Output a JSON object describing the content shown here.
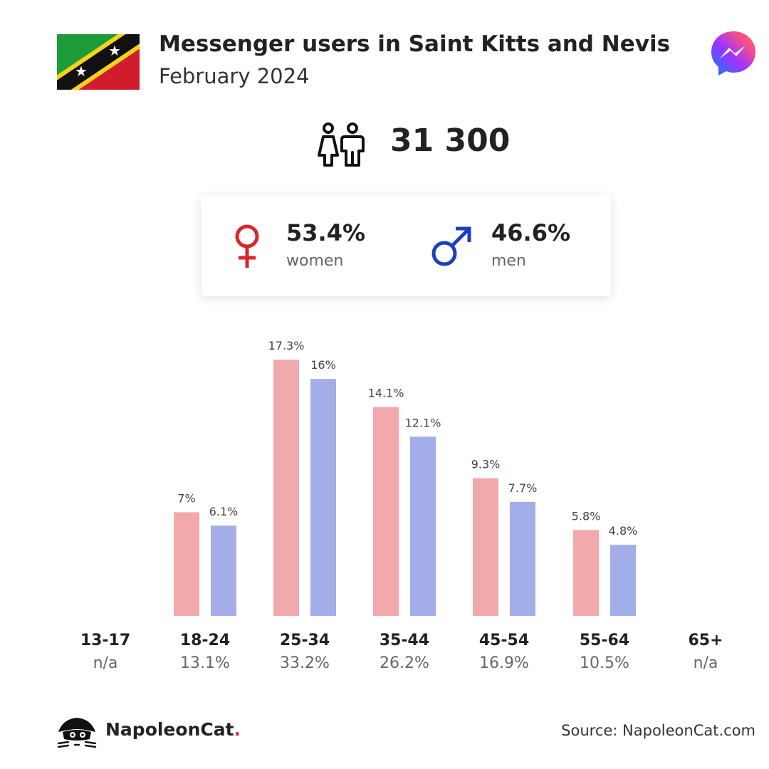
{
  "header": {
    "title": "Messenger users in Saint Kitts and Nevis",
    "subtitle": "February 2024"
  },
  "total": {
    "value": "31 300"
  },
  "gender": {
    "women_pct": "53.4%",
    "women_label": "women",
    "men_pct": "46.6%",
    "men_label": "men"
  },
  "chart_data": {
    "type": "bar",
    "categories": [
      "13-17",
      "18-24",
      "25-34",
      "35-44",
      "45-54",
      "55-64",
      "65+"
    ],
    "category_totals": [
      "n/a",
      "13.1%",
      "33.2%",
      "26.2%",
      "16.9%",
      "10.5%",
      "n/a"
    ],
    "series": [
      {
        "name": "women",
        "values": [
          null,
          7,
          17.3,
          14.1,
          9.3,
          5.8,
          null
        ],
        "labels": [
          "",
          "7%",
          "17.3%",
          "14.1%",
          "9.3%",
          "5.8%",
          ""
        ],
        "color": "#f2a9ac"
      },
      {
        "name": "men",
        "values": [
          null,
          6.1,
          16,
          12.1,
          7.7,
          4.8,
          null
        ],
        "labels": [
          "",
          "6.1%",
          "16%",
          "12.1%",
          "7.7%",
          "4.8%",
          ""
        ],
        "color": "#a3aee8"
      }
    ],
    "ylim": [
      0,
      18
    ]
  },
  "footer": {
    "brand": "NapoleonCat",
    "brand_dot": ".",
    "source": "Source: NapoleonCat.com"
  },
  "colors": {
    "female": "#d9262c",
    "male": "#1c3fbf"
  }
}
